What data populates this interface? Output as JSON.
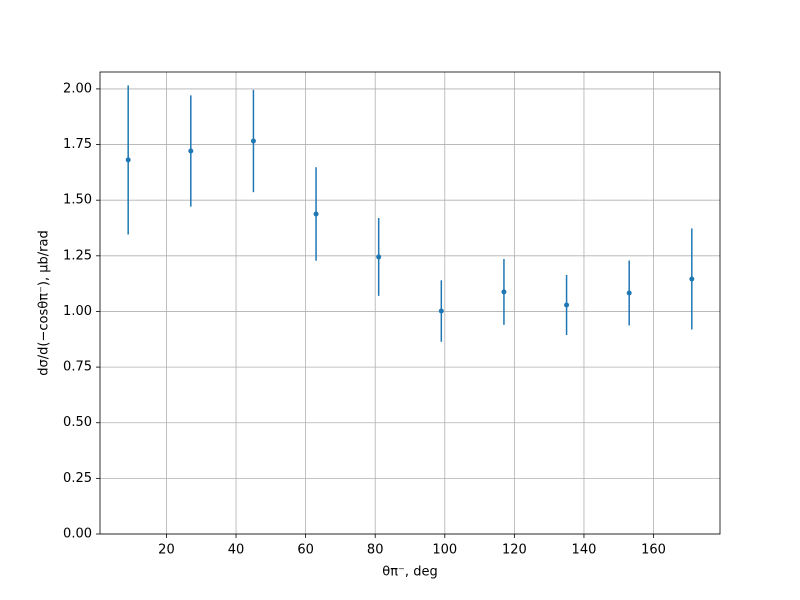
{
  "chart_data": {
    "type": "errorbar",
    "xlabel": "θπ⁻, deg",
    "ylabel": "dσ/d(−cosθπ⁻), μb/rad",
    "x": [
      9,
      27,
      45,
      63,
      81,
      99,
      117,
      135,
      153,
      171
    ],
    "values": [
      1.681,
      1.721,
      1.766,
      1.438,
      1.245,
      1.002,
      1.088,
      1.029,
      1.083,
      1.146
    ],
    "errors": [
      0.335,
      0.25,
      0.23,
      0.21,
      0.175,
      0.138,
      0.148,
      0.135,
      0.146,
      0.227
    ],
    "color": "#1f77b4",
    "xlim": [
      0.9,
      179.1
    ],
    "ylim": [
      0,
      2.076
    ],
    "xticks": [
      20,
      40,
      60,
      80,
      100,
      120,
      140,
      160
    ],
    "yticks": [
      {
        "value": 0,
        "label": "0.00"
      },
      {
        "value": 0.25,
        "label": "0.25"
      },
      {
        "value": 0.5,
        "label": "0.50"
      },
      {
        "value": 0.75,
        "label": "0.75"
      },
      {
        "value": 1,
        "label": "1.00"
      },
      {
        "value": 1.25,
        "label": "1.25"
      },
      {
        "value": 1.5,
        "label": "1.50"
      },
      {
        "value": 1.75,
        "label": "1.75"
      },
      {
        "value": 2,
        "label": "2.00"
      }
    ],
    "grid": true
  }
}
